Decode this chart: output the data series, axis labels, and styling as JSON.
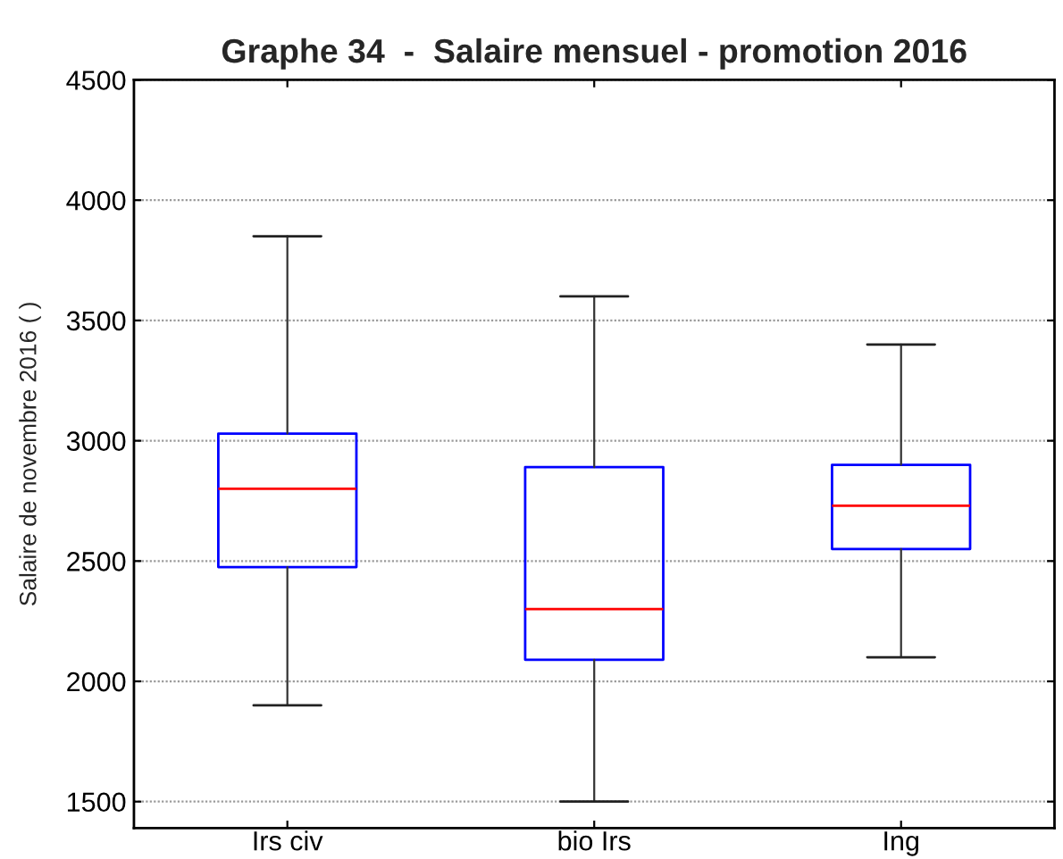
{
  "chart_data": {
    "type": "box",
    "title": "Graphe 34  -  Salaire mensuel - promotion 2016",
    "ylabel": "Salaire de novembre 2016 ( )",
    "categories": [
      "Irs civ",
      "bio Irs",
      "Ing"
    ],
    "series": [
      {
        "color": "#0000ff",
        "boxes": [
          {
            "low": 1900,
            "q1": 2475,
            "median": 2800,
            "q3": 3030,
            "high": 3850
          },
          {
            "low": 1500,
            "q1": 2090,
            "median": 2300,
            "q3": 2890,
            "high": 3600
          },
          {
            "low": 2100,
            "q1": 2550,
            "median": 2730,
            "q3": 2900,
            "high": 3400
          }
        ]
      }
    ],
    "ylim": [
      1390,
      4500
    ],
    "yticks": [
      1500,
      2000,
      2500,
      3000,
      3500,
      4000,
      4500
    ],
    "grid": "y"
  }
}
